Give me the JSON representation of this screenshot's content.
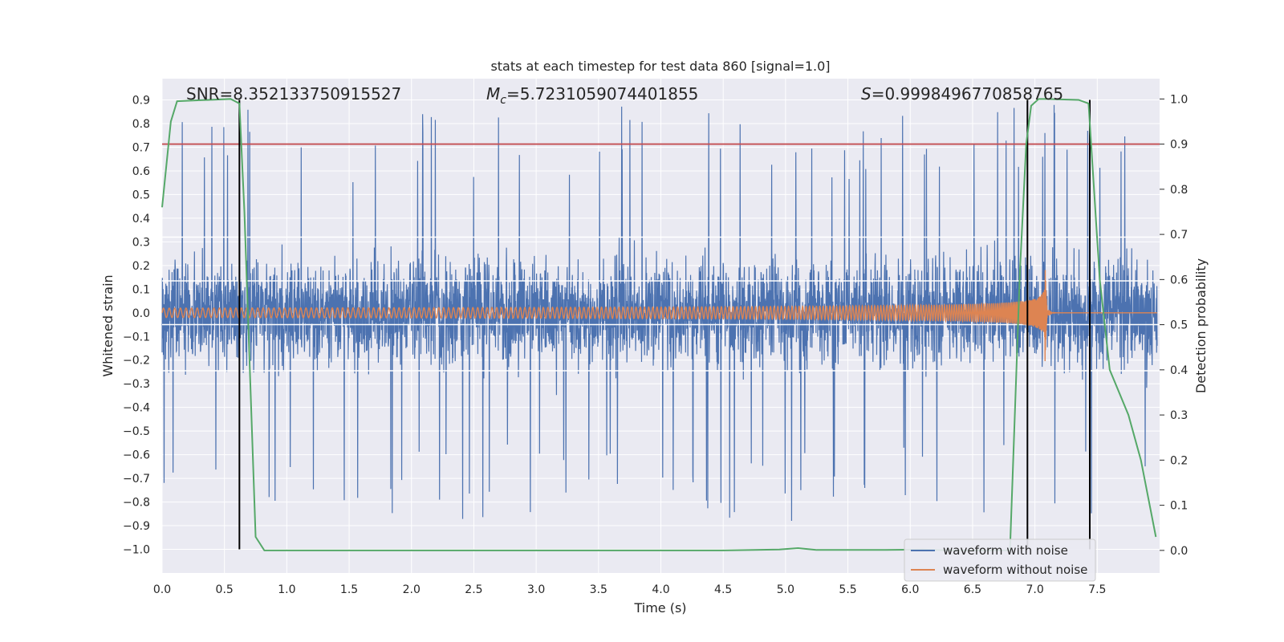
{
  "chart_data": {
    "type": "line",
    "title": "stats at each timestep for test data 860 [signal=1.0]",
    "xlabel": "Time (s)",
    "ylabel": "Whitened strain",
    "y2label": "Detection probability",
    "xlim": [
      0.0,
      8.0
    ],
    "ylim": [
      -1.1,
      0.99
    ],
    "y2lim": [
      -0.05,
      1.045
    ],
    "xticks": [
      "0.0",
      "0.5",
      "1.0",
      "1.5",
      "2.0",
      "2.5",
      "3.0",
      "3.5",
      "4.0",
      "4.5",
      "5.0",
      "5.5",
      "6.0",
      "6.5",
      "7.0",
      "7.5"
    ],
    "yticks": [
      "0.9",
      "0.8",
      "0.7",
      "0.6",
      "0.5",
      "0.4",
      "0.3",
      "0.2",
      "0.1",
      "0.0",
      "−0.1",
      "−0.2",
      "−0.3",
      "−0.4",
      "−0.5",
      "−0.6",
      "−0.7",
      "−0.8",
      "−0.9",
      "−1.0"
    ],
    "y2ticks": [
      "1.0",
      "0.9",
      "0.8",
      "0.7",
      "0.6",
      "0.5",
      "0.4",
      "0.3",
      "0.2",
      "0.1",
      "0.0"
    ],
    "annotations": {
      "snr": "SNR=8.352133750915527",
      "mc_symbol": "M",
      "mc_sub": "c",
      "mc_value": "=5.7231059074401855",
      "s_symbol": "S",
      "s_value": "=0.9998496770858765"
    },
    "series": [
      {
        "name": "waveform with noise",
        "color": "#4c72b0",
        "envelope_typical": 0.45,
        "envelope_peak": 0.9
      },
      {
        "name": "waveform without noise",
        "color": "#dd8452",
        "chirp_start_amp": 0.02,
        "chirp_peak_amp": 0.23,
        "merger_time": 7.08
      },
      {
        "name": "detection probability",
        "color": "#55a868",
        "axis": "right",
        "x": [
          0.0,
          0.07,
          0.12,
          0.55,
          0.62,
          0.66,
          0.75,
          0.82,
          1.5,
          3.0,
          4.5,
          4.95,
          5.1,
          5.25,
          5.8,
          6.1,
          6.3,
          6.8,
          6.88,
          6.93,
          6.97,
          7.03,
          7.1,
          7.35,
          7.43,
          7.52,
          7.6,
          7.75,
          7.85,
          7.97
        ],
        "values": [
          0.76,
          0.95,
          0.995,
          1.0,
          0.99,
          0.75,
          0.03,
          0.0,
          0.0,
          0.0,
          0.0,
          0.002,
          0.005,
          0.001,
          0.001,
          0.002,
          0.0,
          0.0,
          0.62,
          0.9,
          0.985,
          1.0,
          1.0,
          0.998,
          0.99,
          0.6,
          0.4,
          0.3,
          0.2,
          0.03
        ]
      }
    ],
    "threshold": {
      "value": 0.9,
      "axis": "right",
      "color": "#c44e52"
    },
    "vlines": [
      0.62,
      6.94,
      7.44
    ],
    "legend_position": "lower-right"
  }
}
